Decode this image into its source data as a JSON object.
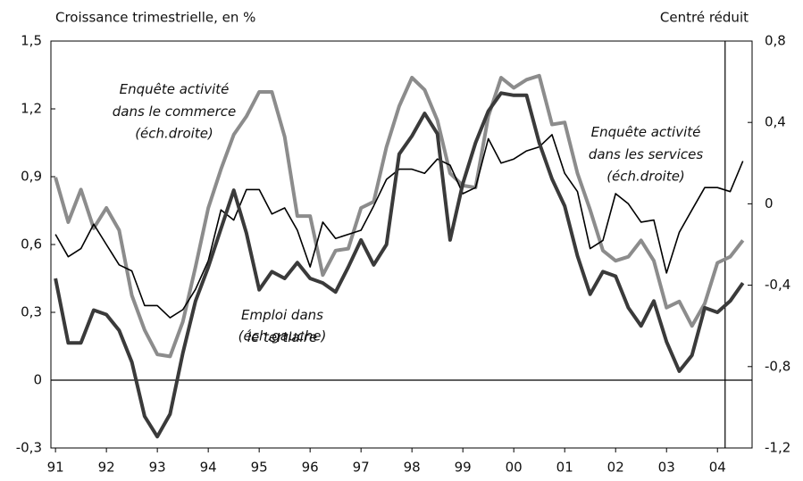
{
  "chart_data": {
    "type": "line",
    "ylabel": "Croissance trimestrielle, en %",
    "y2label": "Centré réduit",
    "x": [
      1991,
      1991.25,
      1991.5,
      1991.75,
      1992,
      1992.25,
      1992.5,
      1992.75,
      1993,
      1993.25,
      1993.5,
      1993.75,
      1994,
      1994.25,
      1994.5,
      1994.75,
      1995,
      1995.25,
      1995.5,
      1995.75,
      1996,
      1996.25,
      1996.5,
      1996.75,
      1997,
      1997.25,
      1997.5,
      1997.75,
      1998,
      1998.25,
      1998.5,
      1998.75,
      1999,
      1999.25,
      1999.5,
      1999.75,
      2000,
      2000.25,
      2000.5,
      2000.75,
      2001,
      2001.25,
      2001.5,
      2001.75,
      2002,
      2002.25,
      2002.5,
      2002.75,
      2003,
      2003.25,
      2003.5,
      2003.75,
      2004,
      2004.25,
      2004.5
    ],
    "xlim": [
      1990.91,
      2004.68
    ],
    "xticks": [
      {
        "value": 1991,
        "label": "91"
      },
      {
        "value": 1992,
        "label": "92"
      },
      {
        "value": 1993,
        "label": "93"
      },
      {
        "value": 1994,
        "label": "94"
      },
      {
        "value": 1995,
        "label": "95"
      },
      {
        "value": 1996,
        "label": "96"
      },
      {
        "value": 1997,
        "label": "97"
      },
      {
        "value": 1998,
        "label": "98"
      },
      {
        "value": 1999,
        "label": "99"
      },
      {
        "value": 2000,
        "label": "00"
      },
      {
        "value": 2001,
        "label": "01"
      },
      {
        "value": 2002,
        "label": "02"
      },
      {
        "value": 2003,
        "label": "03"
      },
      {
        "value": 2004,
        "label": "04"
      }
    ],
    "ylim": [
      -0.3,
      1.5
    ],
    "yticks": [
      {
        "value": -0.3,
        "label": "-0,3"
      },
      0,
      {
        "value": 0.3,
        "label": "0,3"
      },
      {
        "value": 0.6,
        "label": "0,6"
      },
      {
        "value": 0.9,
        "label": "0,9"
      },
      {
        "value": 1.2,
        "label": "1,2"
      },
      {
        "value": 1.5,
        "label": "1,5"
      }
    ],
    "y2lim": [
      -1.2,
      0.8
    ],
    "y2ticks": [
      {
        "value": -1.2,
        "label": "-1,2"
      },
      {
        "value": -0.8,
        "label": "-0,8"
      },
      {
        "value": -0.4,
        "label": "-0,4"
      },
      0,
      {
        "value": 0.4,
        "label": "0,4"
      },
      {
        "value": 0.8,
        "label": "0,8"
      }
    ],
    "zero_line": true,
    "vline": 2004.15,
    "series": [
      {
        "name": "Emploi dans le tertiaire",
        "note": "(éch.gauche)",
        "color": "#3a3a3a",
        "width": 4,
        "values": [
          0.45,
          0.165,
          0.165,
          0.31,
          0.29,
          0.22,
          0.08,
          -0.16,
          -0.25,
          -0.15,
          0.12,
          0.35,
          0.5,
          0.67,
          0.84,
          0.65,
          0.4,
          0.48,
          0.45,
          0.52,
          0.45,
          0.43,
          0.39,
          0.5,
          0.62,
          0.51,
          0.6,
          1.0,
          1.08,
          1.18,
          1.09,
          0.62,
          0.87,
          1.05,
          1.19,
          1.27,
          1.26,
          1.26,
          1.05,
          0.89,
          0.77,
          0.55,
          0.38,
          0.48,
          0.46,
          0.32,
          0.24,
          0.35,
          0.17,
          0.04,
          0.11,
          0.32,
          0.3,
          0.35,
          0.43
        ]
      },
      {
        "name": "Enquête activité dans le commerce",
        "note": "(éch.droite)",
        "color": "#8c8c8c",
        "width": 4,
        "axis": "y2",
        "values": [
          0.13,
          -0.09,
          0.07,
          -0.12,
          -0.02,
          -0.13,
          -0.45,
          -0.62,
          -0.74,
          -0.75,
          -0.58,
          -0.31,
          -0.02,
          0.17,
          0.34,
          0.43,
          0.55,
          0.55,
          0.33,
          -0.06,
          -0.06,
          -0.35,
          -0.23,
          -0.22,
          -0.02,
          0.01,
          0.28,
          0.48,
          0.62,
          0.56,
          0.41,
          0.15,
          0.09,
          0.08,
          0.43,
          0.62,
          0.57,
          0.61,
          0.63,
          0.39,
          0.4,
          0.15,
          -0.03,
          -0.23,
          -0.28,
          -0.26,
          -0.18,
          -0.28,
          -0.51,
          -0.48,
          -0.6,
          -0.49,
          -0.29,
          -0.26,
          -0.18
        ]
      },
      {
        "name": "Enquête activité dans les services",
        "note": "(éch.droite)",
        "color": "#000000",
        "width": 1.6,
        "axis": "y2",
        "values": [
          -0.15,
          -0.26,
          -0.22,
          -0.1,
          -0.2,
          -0.3,
          -0.33,
          -0.5,
          -0.5,
          -0.56,
          -0.52,
          -0.42,
          -0.28,
          -0.03,
          -0.08,
          0.07,
          0.07,
          -0.05,
          -0.02,
          -0.13,
          -0.31,
          -0.09,
          -0.17,
          -0.15,
          -0.13,
          -0.01,
          0.12,
          0.17,
          0.17,
          0.15,
          0.22,
          0.19,
          0.05,
          0.08,
          0.32,
          0.2,
          0.22,
          0.26,
          0.28,
          0.34,
          0.15,
          0.06,
          -0.22,
          -0.18,
          0.05,
          0,
          -0.09,
          -0.08,
          -0.34,
          -0.14,
          -0.03,
          0.08,
          0.08,
          0.06,
          0.21
        ]
      }
    ]
  }
}
